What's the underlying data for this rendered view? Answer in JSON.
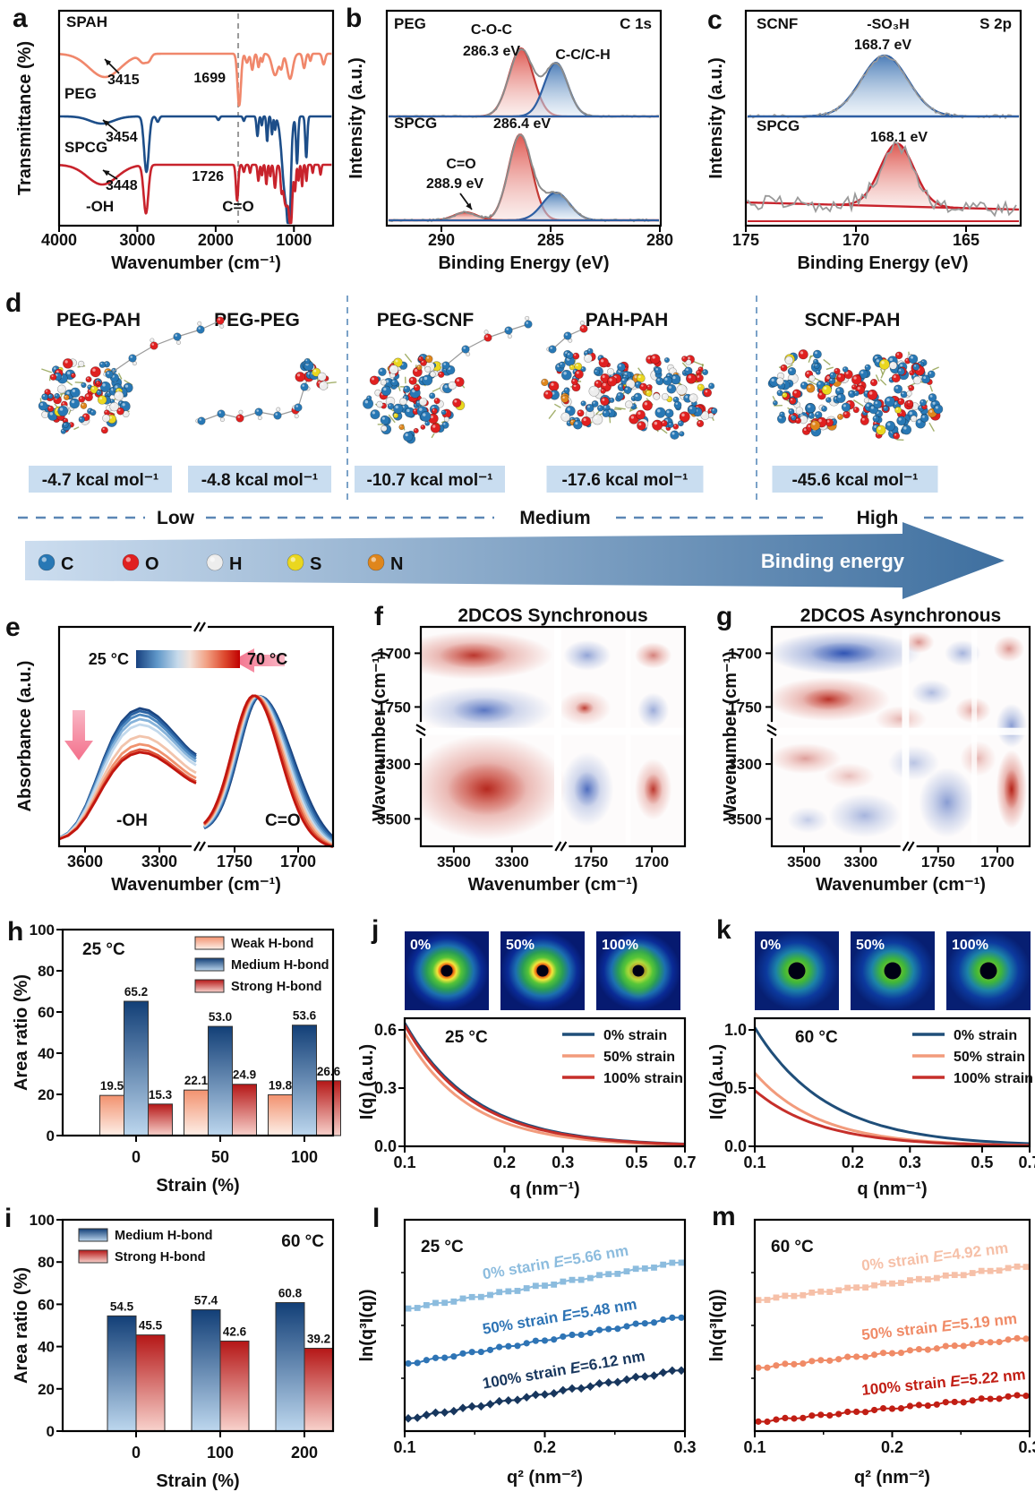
{
  "figure": {
    "background": "#ffffff"
  },
  "panels": {
    "a": {
      "letter": "a",
      "ylabel": "Transmittance (%)",
      "xlabel": "Wavenumber (cm⁻¹)",
      "xticks": [
        "4000",
        "3000",
        "2000",
        "1000"
      ],
      "series": [
        {
          "name": "SPAH",
          "color": "#F0876B",
          "peak": "3415"
        },
        {
          "name": "PEG",
          "color": "#1D4E89",
          "peak": "3454"
        },
        {
          "name": "SPCG",
          "color": "#C8232C",
          "peak": "3448"
        }
      ],
      "peak_top": "1699",
      "peak_bottom": "1726",
      "band_oh": "-OH",
      "band_co": "C=O"
    },
    "b": {
      "letter": "b",
      "core_level": "C 1s",
      "sample_top": "PEG",
      "sample_bottom": "SPCG",
      "peak_coc": "C-O-C",
      "peak_coc_ev": "286.3 eV",
      "peak_cc": "C-C/C-H",
      "peak_spcg_ev": "286.4 eV",
      "peak_co": "C=O",
      "peak_co_ev": "288.9 eV",
      "xlabel": "Binding Energy (eV)",
      "ylabel": "Intensity (a.u.)",
      "xticks": [
        "290",
        "285",
        "280"
      ],
      "colors": {
        "fit_red": "#C43A35",
        "fit_blue": "#2E5FA3",
        "envelope": "#8C8C8C"
      }
    },
    "c": {
      "letter": "c",
      "core_level": "S 2p",
      "sample_top": "SCNF",
      "sample_bottom": "SPCG",
      "peak_so3h": "-SO₃H",
      "peak_top_ev": "168.7 eV",
      "peak_bottom_ev": "168.1 eV",
      "xlabel": "Binding Energy (eV)",
      "ylabel": "Intensity (a.u.)",
      "xticks": [
        "175",
        "170",
        "165"
      ],
      "colors": {
        "top": "#2E5FA3",
        "bottom": "#C8232C"
      }
    },
    "d": {
      "letter": "d",
      "models": [
        {
          "name": "PEG-PAH",
          "energy": "-4.7 kcal mol⁻¹"
        },
        {
          "name": "PEG-PEG",
          "energy": "-4.8 kcal mol⁻¹"
        },
        {
          "name": "PEG-SCNF",
          "energy": "-10.7 kcal mol⁻¹"
        },
        {
          "name": "PAH-PAH",
          "energy": "-17.6 kcal mol⁻¹"
        },
        {
          "name": "SCNF-PAH",
          "energy": "-45.6 kcal mol⁻¹"
        }
      ],
      "levels": [
        "Low",
        "Medium",
        "High"
      ],
      "arrow_label": "Binding energy",
      "badge_bg": "#C9DDF0",
      "atoms": [
        {
          "symbol": "C",
          "color": "#2878B5"
        },
        {
          "symbol": "O",
          "color": "#E02020"
        },
        {
          "symbol": "H",
          "color": "#EDEDED"
        },
        {
          "symbol": "S",
          "color": "#EAD71F"
        },
        {
          "symbol": "N",
          "color": "#DF861C"
        }
      ]
    },
    "e": {
      "letter": "e",
      "temp_low": "25 °C",
      "temp_high": "70 °C",
      "band_left": "-OH",
      "band_right": "C=O",
      "ylabel": "Absorbance (a.u.)",
      "xlabel": "Wavenumber (cm⁻¹)",
      "xticks": [
        "3600",
        "3300",
        "1750",
        "1700"
      ]
    },
    "f": {
      "letter": "f",
      "title": "2DCOS Synchronous",
      "xlabel": "Wavenumber (cm⁻¹)",
      "ylabel": "Wavenumber (cm⁻¹)",
      "xticks": [
        "3500",
        "3300",
        "1750",
        "1700"
      ],
      "yticks": [
        "1700",
        "1750",
        "3300",
        "3500"
      ],
      "blobs": [
        [
          0.2,
          0.13,
          0.3,
          0.11,
          "r",
          0.7
        ],
        [
          0.2,
          0.13,
          0.13,
          0.06,
          "r",
          0.75
        ],
        [
          0.63,
          0.13,
          0.09,
          0.07,
          "b",
          0.55
        ],
        [
          0.88,
          0.13,
          0.07,
          0.06,
          "r",
          0.6
        ],
        [
          0.24,
          0.38,
          0.26,
          0.11,
          "b",
          0.55
        ],
        [
          0.24,
          0.38,
          0.12,
          0.06,
          "b",
          0.6
        ],
        [
          0.62,
          0.37,
          0.1,
          0.08,
          "r",
          0.4
        ],
        [
          0.62,
          0.37,
          0.035,
          0.03,
          "r",
          0.85
        ],
        [
          0.88,
          0.38,
          0.06,
          0.08,
          "b",
          0.5
        ],
        [
          0.25,
          0.73,
          0.3,
          0.24,
          "r",
          0.8
        ],
        [
          0.25,
          0.74,
          0.15,
          0.12,
          "r",
          0.9
        ],
        [
          0.63,
          0.74,
          0.1,
          0.17,
          "b",
          0.55
        ],
        [
          0.63,
          0.74,
          0.05,
          0.08,
          "b",
          0.7
        ],
        [
          0.88,
          0.74,
          0.07,
          0.14,
          "r",
          0.6
        ],
        [
          0.88,
          0.74,
          0.035,
          0.07,
          "r",
          0.8
        ]
      ]
    },
    "g": {
      "letter": "g",
      "title": "2DCOS Asynchronous",
      "xlabel": "Wavenumber (cm⁻¹)",
      "ylabel": "Wavenumber (cm⁻¹)",
      "xticks": [
        "3500",
        "3300",
        "1750",
        "1700"
      ],
      "yticks": [
        "1700",
        "1750",
        "3300",
        "3500"
      ],
      "blobs": [
        [
          0.28,
          0.12,
          0.3,
          0.1,
          "b",
          0.85
        ],
        [
          0.28,
          0.12,
          0.13,
          0.05,
          "b",
          0.95
        ],
        [
          0.57,
          0.07,
          0.06,
          0.05,
          "r",
          0.5
        ],
        [
          0.74,
          0.12,
          0.07,
          0.06,
          "b",
          0.45
        ],
        [
          0.92,
          0.1,
          0.06,
          0.06,
          "r",
          0.5
        ],
        [
          0.22,
          0.33,
          0.24,
          0.1,
          "r",
          0.7
        ],
        [
          0.22,
          0.33,
          0.1,
          0.05,
          "r",
          0.8
        ],
        [
          0.5,
          0.42,
          0.1,
          0.06,
          "r",
          0.35
        ],
        [
          0.62,
          0.3,
          0.08,
          0.06,
          "b",
          0.4
        ],
        [
          0.78,
          0.38,
          0.07,
          0.06,
          "r",
          0.45
        ],
        [
          0.93,
          0.45,
          0.06,
          0.1,
          "b",
          0.6
        ],
        [
          0.13,
          0.6,
          0.14,
          0.07,
          "r",
          0.45
        ],
        [
          0.3,
          0.68,
          0.1,
          0.06,
          "r",
          0.3
        ],
        [
          0.36,
          0.86,
          0.14,
          0.1,
          "b",
          0.45
        ],
        [
          0.14,
          0.88,
          0.08,
          0.06,
          "b",
          0.3
        ],
        [
          0.55,
          0.62,
          0.1,
          0.08,
          "b",
          0.35
        ],
        [
          0.68,
          0.8,
          0.11,
          0.16,
          "b",
          0.6
        ],
        [
          0.8,
          0.6,
          0.07,
          0.08,
          "r",
          0.35
        ],
        [
          0.93,
          0.74,
          0.06,
          0.18,
          "r",
          0.85
        ],
        [
          0.93,
          0.74,
          0.03,
          0.09,
          "r",
          0.95
        ]
      ]
    },
    "h": {
      "letter": "h"
    },
    "i": {
      "letter": "i"
    },
    "j": {
      "letter": "j"
    },
    "k": {
      "letter": "k"
    },
    "l": {
      "letter": "l"
    },
    "m": {
      "letter": "m"
    }
  },
  "chart_data": [
    {
      "panel": "h",
      "type": "bar",
      "temp_label": "25 °C",
      "xlabel": "Strain (%)",
      "ylabel": "Area ratio (%)",
      "ylim": [
        0,
        100
      ],
      "yticks": [
        0,
        20,
        40,
        60,
        80,
        100
      ],
      "categories": [
        "0",
        "50",
        "100"
      ],
      "series": [
        {
          "name": "Weak H-bond",
          "values": [
            19.5,
            22.1,
            19.8
          ],
          "gradient": [
            "#F2926F",
            "#FDEFE8"
          ]
        },
        {
          "name": "Medium H-bond",
          "values": [
            65.2,
            53.0,
            53.6
          ],
          "gradient": [
            "#123F77",
            "#BDD7EE"
          ]
        },
        {
          "name": "Strong H-bond",
          "values": [
            15.3,
            24.9,
            26.6
          ],
          "gradient": [
            "#B51717",
            "#F8D2CC"
          ]
        }
      ]
    },
    {
      "panel": "i",
      "type": "bar",
      "temp_label": "60 °C",
      "xlabel": "Strain (%)",
      "ylabel": "Area ratio (%)",
      "ylim": [
        0,
        100
      ],
      "yticks": [
        0,
        20,
        40,
        60,
        80,
        100
      ],
      "categories": [
        "0",
        "100",
        "200"
      ],
      "series": [
        {
          "name": "Medium H-bond",
          "values": [
            54.5,
            57.4,
            60.8
          ],
          "gradient": [
            "#123F77",
            "#BDD7EE"
          ]
        },
        {
          "name": "Strong  H-bond",
          "values": [
            45.5,
            42.6,
            39.2
          ],
          "gradient": [
            "#B51717",
            "#F8D2CC"
          ]
        }
      ]
    },
    {
      "panel": "j",
      "type": "line",
      "temp_label": "25 °C",
      "xscale": "log",
      "xlabel": "q (nm⁻¹)",
      "ylabel": "I(q) (a.u.)",
      "xticks": [
        "0.1",
        "0.2",
        "0.3",
        "0.5",
        "0.7"
      ],
      "yticks": [
        "0.0",
        "0.3",
        "0.6"
      ],
      "insets": [
        "0%",
        "50%",
        "100%"
      ],
      "series": [
        {
          "name": "0% strain",
          "color": "#1F4E79",
          "I0": 0.635,
          "slope": 2.05
        },
        {
          "name": "50% strain",
          "color": "#F29B7C",
          "I0": 0.585,
          "slope": 2.25
        },
        {
          "name": "100% strain",
          "color": "#C62F2A",
          "I0": 0.625,
          "slope": 2.1
        }
      ]
    },
    {
      "panel": "k",
      "type": "line",
      "temp_label": "60 °C",
      "xscale": "log",
      "xlabel": "q (nm⁻¹)",
      "ylabel": "I(q) (a.u.)",
      "xticks": [
        "0.1",
        "0.2",
        "0.3",
        "0.5",
        "0.7"
      ],
      "yticks": [
        "0.0",
        "0.5",
        "1.0"
      ],
      "insets": [
        "0%",
        "50%",
        "100%"
      ],
      "series": [
        {
          "name": "0% strain",
          "color": "#1F4E79",
          "I0": 1.02,
          "slope": 1.95
        },
        {
          "name": "50% strain",
          "color": "#F29B7C",
          "I0": 0.63,
          "slope": 2.2
        },
        {
          "name": "100% strain",
          "color": "#C62F2A",
          "I0": 0.48,
          "slope": 2.15
        }
      ]
    },
    {
      "panel": "l",
      "type": "scatter",
      "temp_label": "25 °C",
      "xlabel": "q² (nm⁻²)",
      "ylabel": "ln(q³I(q))",
      "xticks": [
        "0.1",
        "0.2",
        "0.3"
      ],
      "series": [
        {
          "name": "0% starin",
          "fit": "E=5.66 nm",
          "color": "#8CBCDE",
          "marker": "square",
          "yspan": [
            0.42,
            0.2
          ]
        },
        {
          "name": "50% strain",
          "fit": "E=5.48 nm",
          "color": "#2E74B5",
          "marker": "circle",
          "yspan": [
            0.68,
            0.46
          ]
        },
        {
          "name": "100% strain",
          "fit": "E=6.12 nm",
          "color": "#17365D",
          "marker": "diamond",
          "yspan": [
            0.94,
            0.71
          ]
        }
      ]
    },
    {
      "panel": "m",
      "type": "scatter",
      "temp_label": "60 °C",
      "xlabel": "q² (nm⁻²)",
      "ylabel": "ln(q³I(q))",
      "xticks": [
        "0.1",
        "0.2",
        "0.3"
      ],
      "series": [
        {
          "name": "0% strain",
          "fit": "E=4.92 nm",
          "color": "#F6C0A8",
          "marker": "square",
          "yspan": [
            0.38,
            0.22
          ]
        },
        {
          "name": "50% strain",
          "fit": "E=5.19 nm",
          "color": "#F08B67",
          "marker": "circle",
          "yspan": [
            0.7,
            0.56
          ]
        },
        {
          "name": "100% strain",
          "fit": "E=5.22 nm",
          "color": "#C11E14",
          "marker": "circle",
          "yspan": [
            0.955,
            0.83
          ]
        }
      ]
    }
  ]
}
